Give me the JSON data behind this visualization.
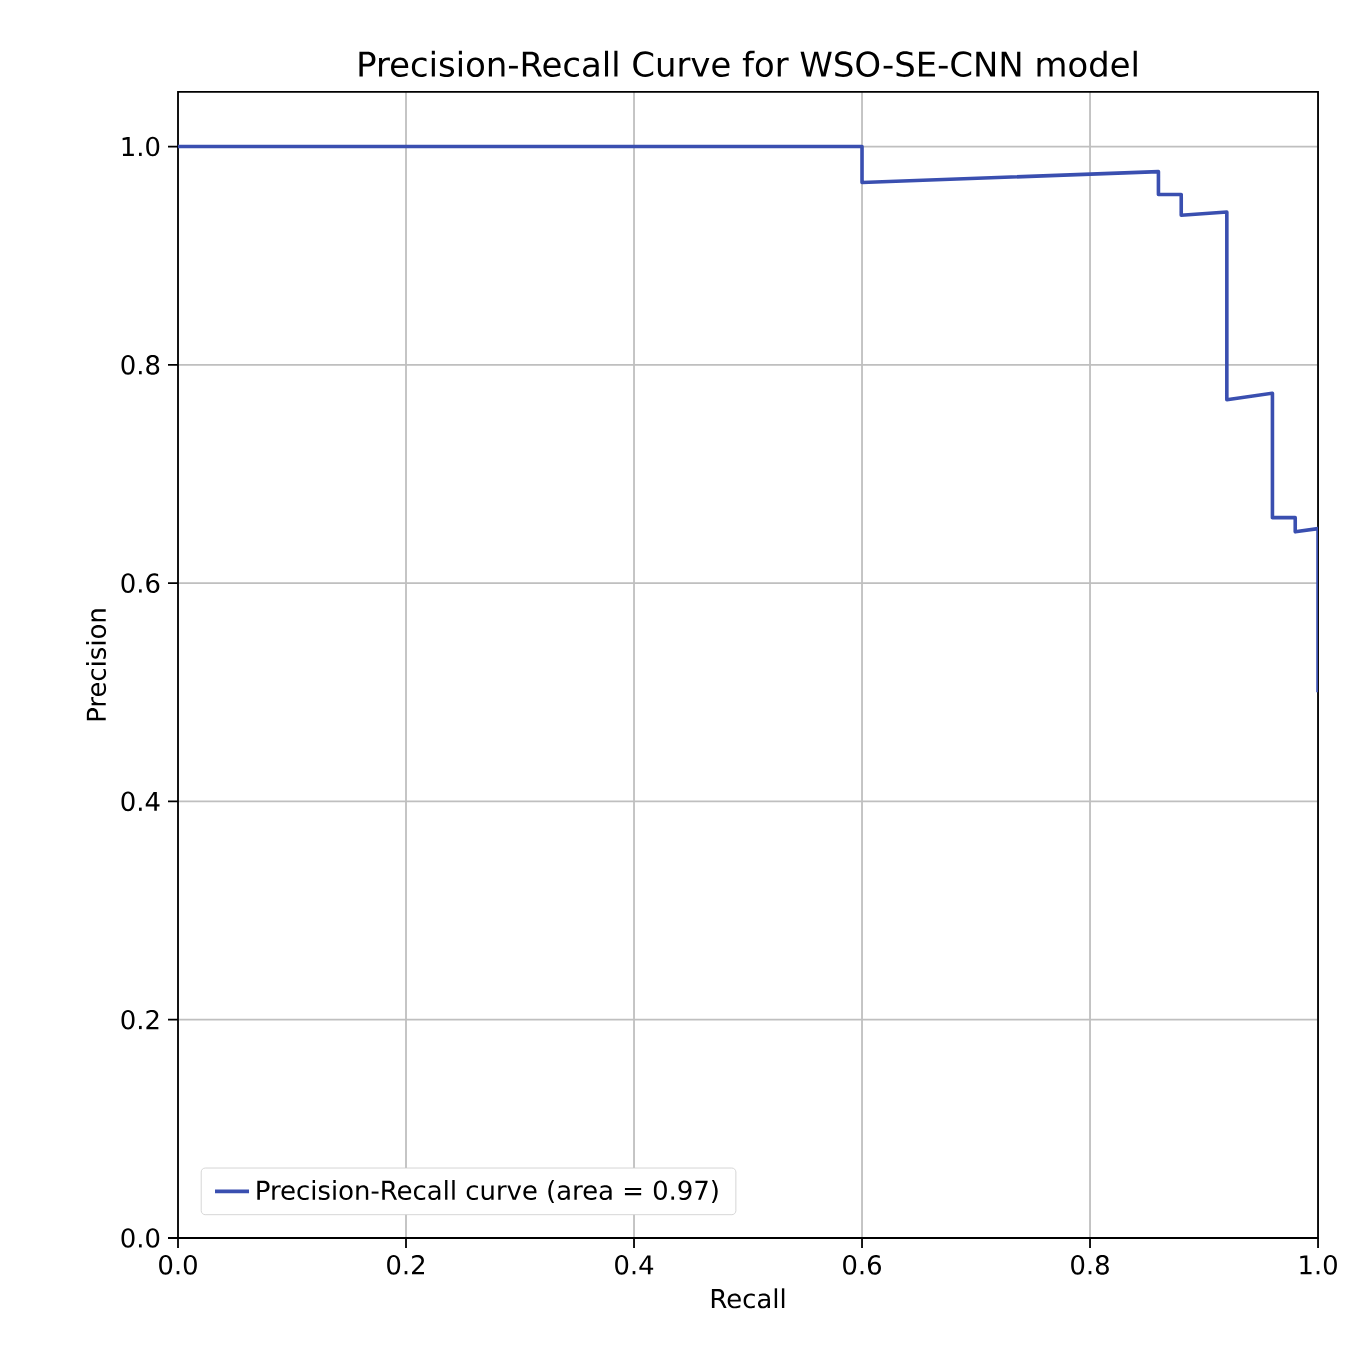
{
  "chart_data": {
    "type": "line",
    "title": "Precision-Recall Curve for WSO-SE-CNN model",
    "xlabel": "Recall",
    "ylabel": "Precision",
    "xlim": [
      0,
      1
    ],
    "ylim": [
      0,
      1.05
    ],
    "xticks": [
      {
        "value": 0,
        "label": "0.0"
      },
      0.2,
      0.4,
      0.6,
      0.8,
      {
        "value": 1,
        "label": "1.0"
      }
    ],
    "yticks": [
      {
        "value": 0,
        "label": "0.0"
      },
      0.2,
      0.4,
      0.6,
      0.8,
      {
        "value": 1,
        "label": "1.0"
      }
    ],
    "grid": true,
    "legend": "bottom left",
    "series": [
      {
        "name": "Precision-Recall curve (area = 0.97)",
        "color": "#3a4fb0",
        "x": [
          0,
          0.6,
          0.6,
          0.86,
          0.86,
          0.88,
          0.88,
          0.92,
          0.92,
          0.96,
          0.96,
          0.98,
          0.98,
          1.0,
          1.0
        ],
        "values": [
          1.0,
          1.0,
          0.967,
          0.977,
          0.956,
          0.956,
          0.937,
          0.94,
          0.768,
          0.774,
          0.66,
          0.66,
          0.647,
          0.65,
          0.5
        ]
      }
    ]
  }
}
